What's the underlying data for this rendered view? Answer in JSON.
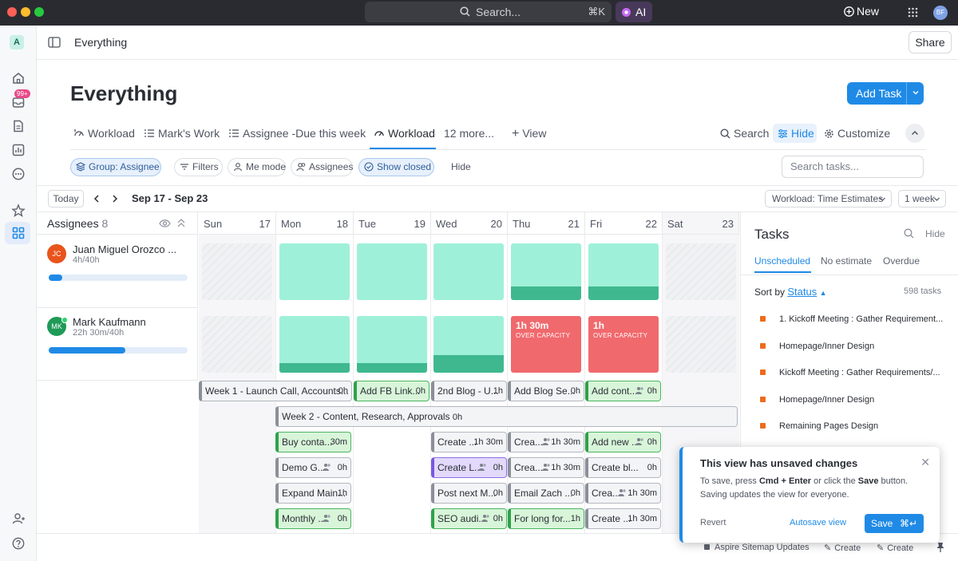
{
  "titlebar": {
    "search_placeholder": "Search...",
    "search_shortcut": "⌘K",
    "ai_label": "AI",
    "new_label": "New",
    "user_initials": "BF"
  },
  "rail": {
    "workspace_initial": "A",
    "inbox_badge": "99+"
  },
  "header": {
    "breadcrumb": "Everything",
    "share_label": "Share"
  },
  "page": {
    "title": "Everything",
    "add_task_label": "Add Task"
  },
  "tabs": {
    "items": [
      "Workload",
      "Mark's Work",
      "Assignee -Due this week",
      "Workload",
      "12 more...",
      "View"
    ],
    "search_label": "Search",
    "hide_label": "Hide",
    "customize_label": "Customize"
  },
  "filters": {
    "group": "Group: Assignee",
    "filters": "Filters",
    "me_mode": "Me mode",
    "assignees": "Assignees",
    "show_closed": "Show closed",
    "hide": "Hide",
    "search_placeholder": "Search tasks..."
  },
  "datebar": {
    "today": "Today",
    "range": "Sep 17 - Sep 23",
    "workload_select": "Workload: Time Estimates",
    "week_select": "1 week"
  },
  "board": {
    "assignees_label": "Assignees",
    "assignees_count": "8",
    "days": [
      {
        "name": "Sun",
        "date": "17"
      },
      {
        "name": "Mon",
        "date": "18"
      },
      {
        "name": "Tue",
        "date": "19"
      },
      {
        "name": "Wed",
        "date": "20"
      },
      {
        "name": "Thu",
        "date": "21"
      },
      {
        "name": "Fri",
        "date": "22"
      },
      {
        "name": "Sat",
        "date": "23"
      }
    ],
    "people": [
      {
        "initials": "JC",
        "name": "Juan Miguel Orozco ...",
        "hours": "4h/40h",
        "progress": 0.1,
        "color": "#e8541c"
      },
      {
        "initials": "MK",
        "name": "Mark Kaufmann",
        "hours": "22h 30m/40h",
        "progress": 0.55,
        "color": "#1f9a57"
      }
    ],
    "over_capacity": [
      {
        "hours": "1h 30m",
        "label": "OVER CAPACITY"
      },
      {
        "hours": "1h",
        "label": "OVER CAPACITY"
      }
    ],
    "tasks": [
      {
        "name": "Week 1 - Launch Call, Accounts...",
        "h": "0h"
      },
      {
        "name": "Add FB Link...",
        "h": "0h"
      },
      {
        "name": "2nd Blog - U...",
        "h": "1h"
      },
      {
        "name": "Add Blog Se...",
        "h": "0h"
      },
      {
        "name": "Add cont...",
        "h": "0h"
      },
      {
        "name": "Week 2 - Content, Research, Approvals",
        "h": "0h"
      },
      {
        "name": "Buy conta...",
        "h": "30m"
      },
      {
        "name": "Create ...",
        "h": "1h 30m"
      },
      {
        "name": "Crea...",
        "h": "1h 30m"
      },
      {
        "name": "Add new ...",
        "h": "0h"
      },
      {
        "name": "Demo G...",
        "h": "0h"
      },
      {
        "name": "Create L...",
        "h": "0h"
      },
      {
        "name": "Crea...",
        "h": "1h 30m"
      },
      {
        "name": "Create bl...",
        "h": "0h"
      },
      {
        "name": "Expand Main...",
        "h": "1h"
      },
      {
        "name": "Post next M...",
        "h": "0h"
      },
      {
        "name": "Email Zach ...",
        "h": "0h"
      },
      {
        "name": "Crea...",
        "h": "1h 30m"
      },
      {
        "name": "Monthly ...",
        "h": "0h"
      },
      {
        "name": "SEO audi...",
        "h": "0h"
      },
      {
        "name": "For long for...",
        "h": "1h"
      },
      {
        "name": "Create ...",
        "h": "1h 30m"
      }
    ]
  },
  "panel": {
    "title": "Tasks",
    "hide": "Hide",
    "tabs": [
      "Unscheduled",
      "No estimate",
      "Overdue"
    ],
    "sort_by": "Sort by",
    "sort_field": "Status",
    "count": "598 tasks",
    "items": [
      "1. Kickoff Meeting : Gather Requirement...",
      "Homepage/Inner Design",
      "Kickoff Meeting : Gather Requirements/...",
      "Homepage/Inner Design",
      "Remaining Pages Design"
    ]
  },
  "toast": {
    "title": "This view has unsaved changes",
    "line1_pre": "To save, press ",
    "line1_key": "Cmd + Enter",
    "line1_mid": " or click the ",
    "line1_btn": "Save",
    "line1_post": " button.",
    "line2": "Saving updates the view for everyone.",
    "revert": "Revert",
    "autosave": "Autosave view",
    "save": "Save",
    "save_kbd": "⌘↵"
  },
  "footer": {
    "items": [
      "Aspire Sitemap Updates",
      "Create",
      "Create"
    ]
  },
  "colors": {
    "accent": "#1f8ae6",
    "capacity_green": "#9ff0d8",
    "over_capacity_red": "#f0696d",
    "priority_orange": "#ec6b1e"
  }
}
